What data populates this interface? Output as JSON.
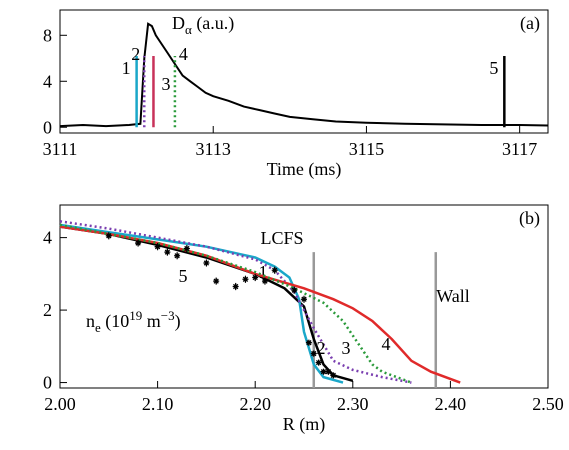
{
  "chart_data": [
    {
      "type": "line",
      "panel_label": "(a)",
      "ylabel_parts": [
        "D",
        "α",
        " (a.u.)"
      ],
      "xlabel": "Time (ms)",
      "xlim": [
        3111,
        3117.37
      ],
      "ylim": [
        -0.5,
        10.2
      ],
      "xticks": [
        3111,
        3113,
        3115,
        3117
      ],
      "yticks": [
        0,
        4,
        8
      ],
      "x": [
        3111.0,
        3111.3,
        3111.6,
        3111.9,
        3112.05,
        3112.1,
        3112.15,
        3112.2,
        3112.25,
        3112.3,
        3112.4,
        3112.5,
        3112.6,
        3112.7,
        3112.8,
        3112.9,
        3113.0,
        3113.2,
        3113.4,
        3113.6,
        3113.8,
        3114.0,
        3114.3,
        3114.6,
        3115.0,
        3115.5,
        3116.0,
        3116.5,
        3117.0,
        3117.37
      ],
      "series": [
        {
          "color": "#000000",
          "values": [
            0.1,
            0.2,
            0.1,
            0.2,
            0.3,
            6,
            9,
            8.8,
            8,
            7.5,
            6.5,
            5.5,
            4.5,
            4,
            3.5,
            3,
            2.7,
            2.3,
            1.8,
            1.5,
            1.2,
            0.9,
            0.7,
            0.5,
            0.4,
            0.3,
            0.25,
            0.2,
            0.2,
            0.15
          ]
        }
      ],
      "events": [
        {
          "name": "1",
          "x": 3112.0,
          "value": 6.2,
          "color": "#1aa7c9",
          "linestyle": "solid"
        },
        {
          "name": "2",
          "x": 3112.1,
          "value": 6.2,
          "color": "#7a3fb0",
          "linestyle": "dotted"
        },
        {
          "name": "3",
          "x": 3112.22,
          "value": 6.2,
          "color": "#c8325a",
          "linestyle": "solid"
        },
        {
          "name": "4",
          "x": 3112.5,
          "value": 6.2,
          "color": "#2a9a3a",
          "linestyle": "dotted"
        },
        {
          "name": "5",
          "x": 3116.8,
          "value": 6.2,
          "color": "#000000",
          "linestyle": "solid"
        }
      ]
    },
    {
      "type": "line",
      "panel_label": "(b)",
      "ylabel_parts": [
        "n",
        "e",
        " (10",
        "19",
        " m",
        "−3",
        ")"
      ],
      "xlabel": "R (m)",
      "xlim": [
        2.0,
        2.5
      ],
      "ylim": [
        -0.15,
        4.9
      ],
      "xticks": [
        {
          "value": 2.0,
          "label": "2.00"
        },
        {
          "value": 2.1,
          "label": "2.10"
        },
        {
          "value": 2.2,
          "label": "2.20"
        },
        {
          "value": 2.3,
          "label": "2.30"
        },
        {
          "value": 2.4,
          "label": "2.40"
        },
        {
          "value": 2.5,
          "label": "2.50"
        }
      ],
      "yticks": [
        0,
        2,
        4
      ],
      "series": [
        {
          "name": "5",
          "color": "#000000",
          "linestyle": "solid",
          "x": [
            2.0,
            2.05,
            2.1,
            2.15,
            2.2,
            2.23,
            2.25,
            2.26,
            2.27,
            2.28,
            2.3
          ],
          "values": [
            4.3,
            4.1,
            3.8,
            3.45,
            3.0,
            2.6,
            2.1,
            1.2,
            0.5,
            0.2,
            0.05
          ]
        },
        {
          "name": "1",
          "color": "#1aa7c9",
          "linestyle": "solid",
          "x": [
            2.0,
            2.05,
            2.1,
            2.15,
            2.2,
            2.22,
            2.235,
            2.245,
            2.25,
            2.26,
            2.27,
            2.29
          ],
          "values": [
            4.35,
            4.15,
            3.95,
            3.75,
            3.45,
            3.2,
            2.9,
            2.3,
            1.4,
            0.5,
            0.15,
            0.0
          ]
        },
        {
          "name": "2",
          "color": "#7a3fb0",
          "linestyle": "dotted",
          "x": [
            2.0,
            2.05,
            2.1,
            2.15,
            2.2,
            2.22,
            2.24,
            2.26,
            2.28,
            2.3,
            2.33,
            2.36
          ],
          "values": [
            4.45,
            4.25,
            4.0,
            3.75,
            3.4,
            3.1,
            2.5,
            1.5,
            0.6,
            0.35,
            0.15,
            0.0
          ]
        },
        {
          "name": "3",
          "color": "#e02a2a",
          "linestyle": "solid",
          "x": [
            2.0,
            2.05,
            2.1,
            2.15,
            2.2,
            2.25,
            2.28,
            2.3,
            2.32,
            2.34,
            2.36,
            2.38,
            2.41
          ],
          "values": [
            4.3,
            4.1,
            3.85,
            3.5,
            3.0,
            2.6,
            2.3,
            2.05,
            1.7,
            1.2,
            0.6,
            0.3,
            0.0
          ]
        },
        {
          "name": "4",
          "color": "#2a9a3a",
          "linestyle": "dotted",
          "x": [
            2.0,
            2.05,
            2.1,
            2.15,
            2.2,
            2.24,
            2.27,
            2.29,
            2.3,
            2.31,
            2.32,
            2.33,
            2.36
          ],
          "values": [
            4.35,
            4.1,
            3.85,
            3.5,
            3.05,
            2.6,
            2.2,
            1.7,
            1.3,
            0.9,
            0.5,
            0.3,
            0.0
          ]
        }
      ],
      "points": {
        "x": [
          2.05,
          2.08,
          2.1,
          2.11,
          2.12,
          2.13,
          2.15,
          2.16,
          2.18,
          2.19,
          2.2,
          2.21,
          2.22,
          2.24,
          2.25,
          2.255,
          2.26,
          2.265,
          2.27,
          2.275,
          2.28
        ],
        "values": [
          4.05,
          3.85,
          3.75,
          3.6,
          3.5,
          3.7,
          3.3,
          2.8,
          2.65,
          2.85,
          2.9,
          2.8,
          3.1,
          2.55,
          2.3,
          1.1,
          0.8,
          0.55,
          0.3,
          0.3,
          0.2
        ],
        "errors": [
          0.1,
          0.1,
          0.1,
          0.1,
          0.1,
          0.1,
          0.1,
          0.1,
          0.1,
          0.1,
          0.1,
          0.1,
          0.1,
          0.1,
          0.1,
          0.08,
          0.08,
          0.08,
          0.08,
          0.08,
          0.08
        ]
      },
      "vlines": [
        {
          "label": "LCFS",
          "x": 2.26,
          "value": 3.6
        },
        {
          "label": "Wall",
          "x": 2.385,
          "value": 3.6
        }
      ]
    }
  ]
}
